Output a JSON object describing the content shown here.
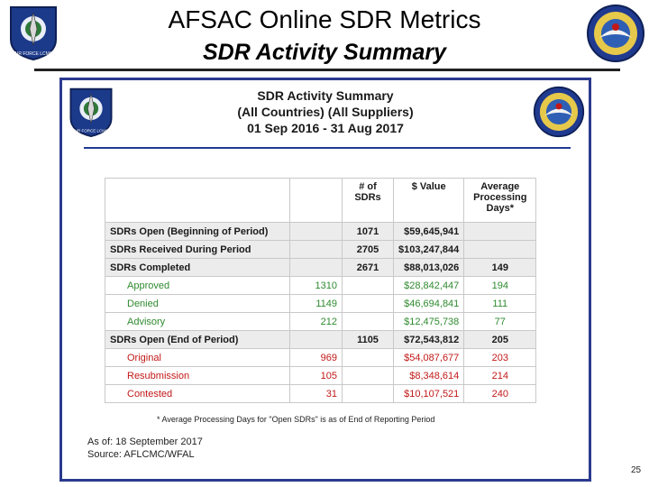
{
  "title": "AFSAC Online SDR Metrics",
  "subtitle": "SDR Activity Summary",
  "logos": {
    "left": "air-force-logo-icon",
    "right": "afsac-seal-icon",
    "left_text": "AIR FORCE LCMC"
  },
  "slide": {
    "title_line1": "SDR Activity Summary",
    "title_line2": "(All Countries) (All Suppliers)",
    "title_line3": "01 Sep 2016 - 31 Aug 2017",
    "table": {
      "headers": [
        "",
        "",
        "# of SDRs",
        "$ Value",
        "Average Processing Days*"
      ],
      "rows": [
        {
          "label": "SDRs Open (Beginning of Period)",
          "count": "",
          "sdrs": "1071",
          "value": "$59,645,941",
          "days": ""
        },
        {
          "label": "SDRs Received During Period",
          "count": "",
          "sdrs": "2705",
          "value": "$103,247,844",
          "days": ""
        },
        {
          "label": "SDRs Completed",
          "count": "",
          "sdrs": "2671",
          "value": "$88,013,026",
          "days": "149"
        },
        {
          "label": "Approved",
          "count": "1310",
          "sdrs": "",
          "value": "$28,842,447",
          "days": "194"
        },
        {
          "label": "Denied",
          "count": "1149",
          "sdrs": "",
          "value": "$46,694,841",
          "days": "111"
        },
        {
          "label": "Advisory",
          "count": "212",
          "sdrs": "",
          "value": "$12,475,738",
          "days": "77"
        },
        {
          "label": "SDRs Open (End of Period)",
          "count": "",
          "sdrs": "1105",
          "value": "$72,543,812",
          "days": "205"
        },
        {
          "label": "Original",
          "count": "969",
          "sdrs": "",
          "value": "$54,087,677",
          "days": "203"
        },
        {
          "label": "Resubmission",
          "count": "105",
          "sdrs": "",
          "value": "$8,348,614",
          "days": "214"
        },
        {
          "label": "Contested",
          "count": "31",
          "sdrs": "",
          "value": "$10,107,521",
          "days": "240"
        }
      ]
    },
    "footnote": "* Average Processing Days for \"Open SDRs\" is as of End of Reporting Period",
    "as_of": "As of: 18 September 2017",
    "source": "Source: AFLCMC/WFAL"
  },
  "page_number": "25",
  "colors": {
    "frame": "#2b3a8f",
    "green": "#2f8a2f",
    "red": "#c21818"
  }
}
